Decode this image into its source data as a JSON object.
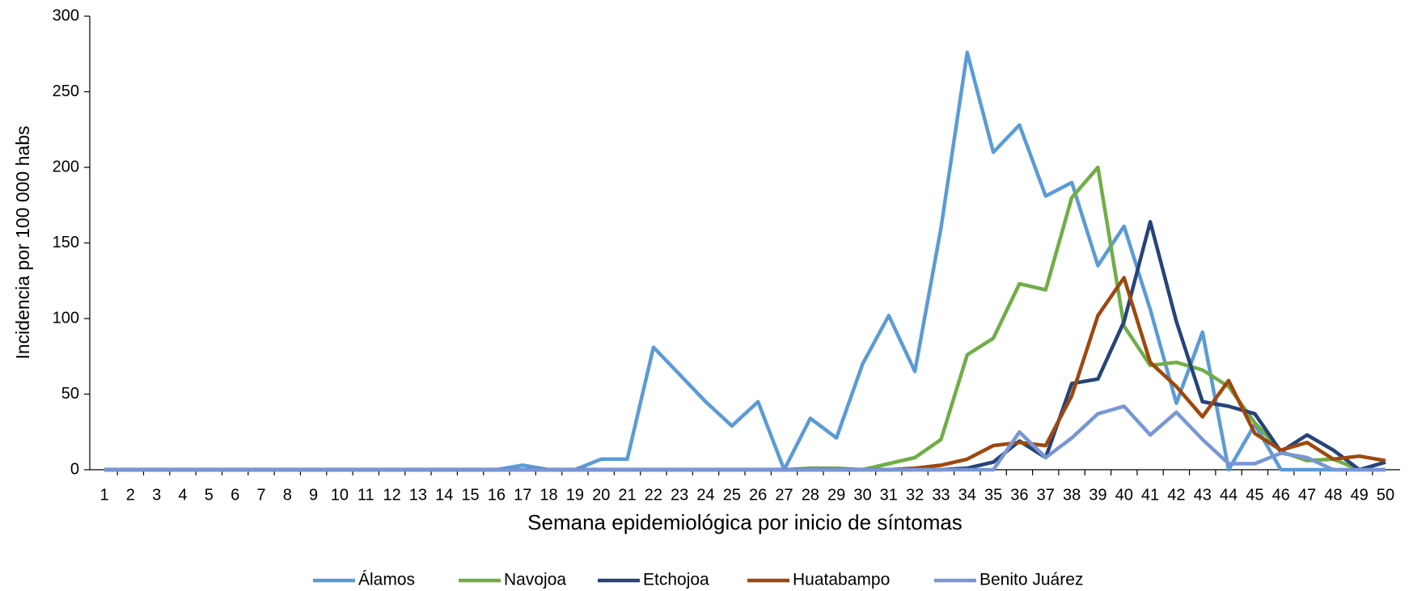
{
  "chart_data": {
    "type": "line",
    "x_label": "Semana epidemiológica por inicio de síntomas",
    "y_label": "Incidencia por 100 000 habs",
    "categories": [
      "1",
      "2",
      "3",
      "4",
      "5",
      "6",
      "7",
      "8",
      "9",
      "10",
      "11",
      "12",
      "13",
      "14",
      "15",
      "16",
      "17",
      "18",
      "19",
      "20",
      "21",
      "22",
      "23",
      "24",
      "25",
      "26",
      "27",
      "28",
      "29",
      "30",
      "31",
      "32",
      "33",
      "34",
      "35",
      "36",
      "37",
      "38",
      "39",
      "40",
      "41",
      "42",
      "43",
      "44",
      "45",
      "46",
      "47",
      "48",
      "49",
      "50"
    ],
    "ylim": [
      0,
      300
    ],
    "yticks": [
      0,
      50,
      100,
      150,
      200,
      250,
      300
    ],
    "legend": "bottom",
    "series": [
      {
        "name": "Álamos",
        "color": "#5b9bd5",
        "values": [
          0,
          0,
          0,
          0,
          0,
          0,
          0,
          0,
          0,
          0,
          0,
          0,
          0,
          0,
          0,
          0,
          3,
          0,
          0,
          7,
          7,
          81,
          63,
          45,
          29,
          45,
          0,
          34,
          21,
          70,
          102,
          65,
          160,
          276,
          210,
          228,
          181,
          190,
          135,
          161,
          106,
          44,
          91,
          0,
          30,
          0,
          0,
          0,
          0,
          0
        ]
      },
      {
        "name": "Navojoa",
        "color": "#70ad47",
        "values": [
          0,
          0,
          0,
          0,
          0,
          0,
          0,
          0,
          0,
          0,
          0,
          0,
          0,
          0,
          0,
          0,
          0,
          0,
          0,
          0,
          0,
          0,
          0,
          0,
          0,
          0,
          0,
          1,
          1,
          0,
          4,
          8,
          20,
          76,
          87,
          123,
          119,
          180,
          200,
          95,
          69,
          71,
          66,
          55,
          31,
          12,
          6,
          7,
          0,
          5
        ]
      },
      {
        "name": "Etchojoa",
        "color": "#264478",
        "values": [
          0,
          0,
          0,
          0,
          0,
          0,
          0,
          0,
          0,
          0,
          0,
          0,
          0,
          0,
          0,
          0,
          0,
          0,
          0,
          0,
          0,
          0,
          0,
          0,
          0,
          0,
          0,
          0,
          0,
          0,
          0,
          0,
          0,
          1,
          5,
          19,
          8,
          57,
          60,
          98,
          164,
          98,
          45,
          42,
          37,
          12,
          23,
          13,
          0,
          5
        ]
      },
      {
        "name": "Huatabampo",
        "color": "#9e480e",
        "values": [
          0,
          0,
          0,
          0,
          0,
          0,
          0,
          0,
          0,
          0,
          0,
          0,
          0,
          0,
          0,
          0,
          0,
          0,
          0,
          0,
          0,
          0,
          0,
          0,
          0,
          0,
          0,
          0,
          0,
          0,
          0,
          1,
          3,
          7,
          16,
          18,
          16,
          49,
          102,
          127,
          71,
          55,
          35,
          59,
          24,
          13,
          18,
          7,
          9,
          6
        ]
      },
      {
        "name": "Benito Juárez",
        "color": "#7896d4",
        "values": [
          0,
          0,
          0,
          0,
          0,
          0,
          0,
          0,
          0,
          0,
          0,
          0,
          0,
          0,
          0,
          0,
          0,
          0,
          0,
          0,
          0,
          0,
          0,
          0,
          0,
          0,
          0,
          0,
          0,
          0,
          0,
          0,
          0,
          0,
          0,
          25,
          8,
          21,
          37,
          42,
          23,
          38,
          20,
          4,
          4,
          11,
          8,
          0,
          0,
          0
        ]
      }
    ]
  }
}
